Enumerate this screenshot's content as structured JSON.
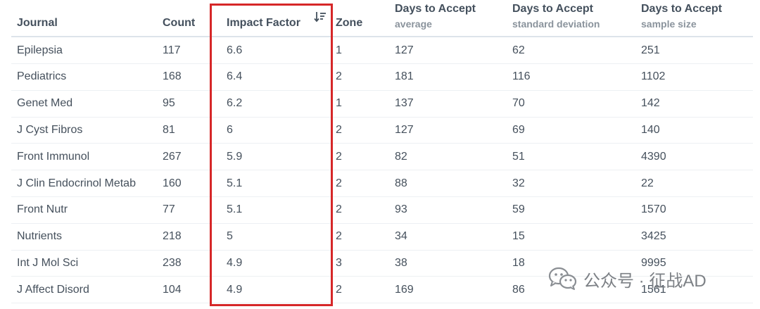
{
  "table": {
    "headers": {
      "journal": "Journal",
      "count": "Count",
      "impact_factor": "Impact Factor",
      "zone": "Zone",
      "days_avg_title": "Days to Accept",
      "days_avg_sub": "average",
      "days_sd_title": "Days to Accept",
      "days_sd_sub": "standard deviation",
      "days_n_title": "Days to Accept",
      "days_n_sub": "sample size"
    },
    "sort": {
      "column": "impact_factor",
      "direction": "descending",
      "icon": "sort-descending-icon"
    },
    "rows": [
      {
        "journal": "Epilepsia",
        "count": "117",
        "impact_factor": "6.6",
        "zone": "1",
        "days_avg": "127",
        "days_sd": "62",
        "days_n": "251"
      },
      {
        "journal": "Pediatrics",
        "count": "168",
        "impact_factor": "6.4",
        "zone": "2",
        "days_avg": "181",
        "days_sd": "116",
        "days_n": "1102"
      },
      {
        "journal": "Genet Med",
        "count": "95",
        "impact_factor": "6.2",
        "zone": "1",
        "days_avg": "137",
        "days_sd": "70",
        "days_n": "142"
      },
      {
        "journal": "J Cyst Fibros",
        "count": "81",
        "impact_factor": "6",
        "zone": "2",
        "days_avg": "127",
        "days_sd": "69",
        "days_n": "140"
      },
      {
        "journal": "Front Immunol",
        "count": "267",
        "impact_factor": "5.9",
        "zone": "2",
        "days_avg": "82",
        "days_sd": "51",
        "days_n": "4390"
      },
      {
        "journal": "J Clin Endocrinol Metab",
        "count": "160",
        "impact_factor": "5.1",
        "zone": "2",
        "days_avg": "88",
        "days_sd": "32",
        "days_n": "22"
      },
      {
        "journal": "Front Nutr",
        "count": "77",
        "impact_factor": "5.1",
        "zone": "2",
        "days_avg": "93",
        "days_sd": "59",
        "days_n": "1570"
      },
      {
        "journal": "Nutrients",
        "count": "218",
        "impact_factor": "5",
        "zone": "2",
        "days_avg": "34",
        "days_sd": "15",
        "days_n": "3425"
      },
      {
        "journal": "Int J Mol Sci",
        "count": "238",
        "impact_factor": "4.9",
        "zone": "3",
        "days_avg": "38",
        "days_sd": "18",
        "days_n": "9995"
      },
      {
        "journal": "J Affect Disord",
        "count": "104",
        "impact_factor": "4.9",
        "zone": "2",
        "days_avg": "169",
        "days_sd": "86",
        "days_n": "1561"
      }
    ]
  },
  "highlight": {
    "color": "#d62728",
    "column": "impact_factor"
  },
  "watermark": {
    "icon": "wechat-icon",
    "text": "公众号 · 征战AD"
  }
}
